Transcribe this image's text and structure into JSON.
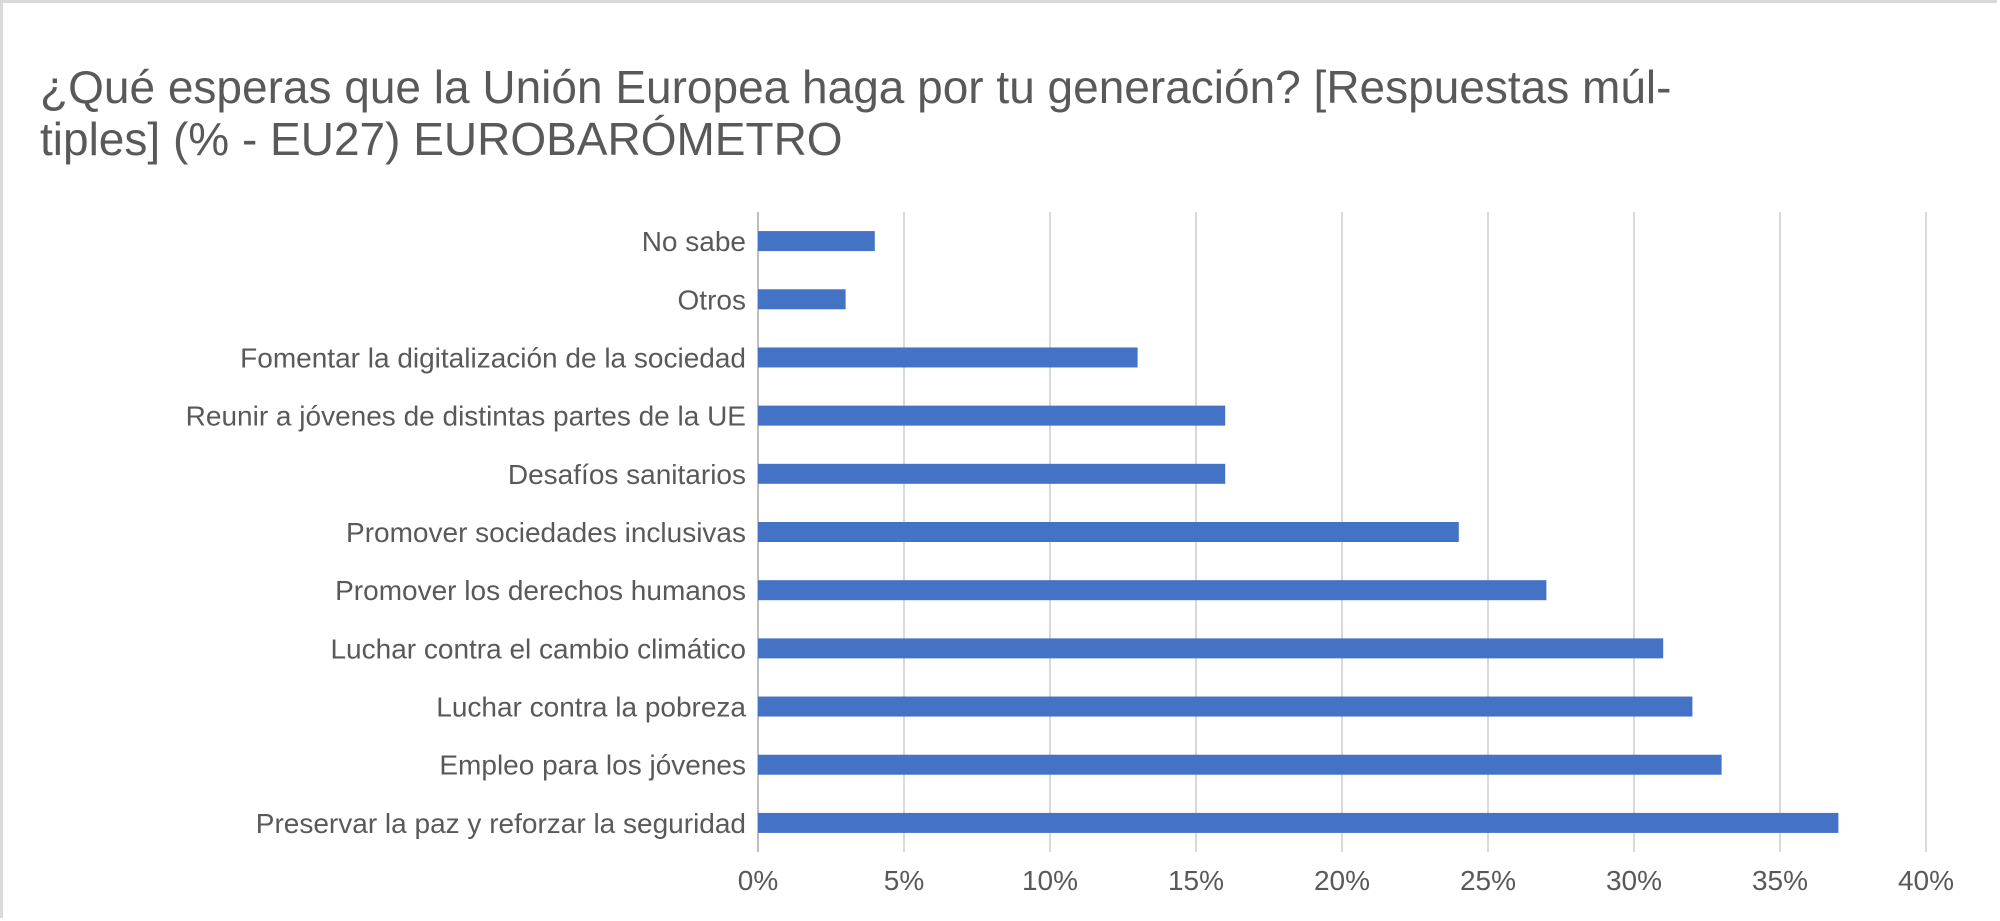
{
  "chart_data": {
    "type": "bar",
    "orientation": "horizontal",
    "title_lines": [
      "¿Qué esperas que la Unión Europea haga por tu generación? [Respuestas múl-",
      "tiples] (% - EU27) EUROBARÓMETRO"
    ],
    "categories": [
      "No sabe",
      "Otros",
      "Fomentar la digitalización de la sociedad",
      "Reunir a jóvenes de distintas partes de la UE",
      "Desafíos sanitarios",
      "Promover sociedades inclusivas",
      "Promover los derechos humanos",
      "Luchar contra el cambio climático",
      "Luchar contra la pobreza",
      "Empleo para los jóvenes",
      "Preservar la paz y reforzar la seguridad"
    ],
    "values": [
      4,
      3,
      13,
      16,
      16,
      24,
      27,
      31,
      32,
      33,
      37
    ],
    "xlim": [
      0,
      40
    ],
    "xticks": [
      0,
      5,
      10,
      15,
      20,
      25,
      30,
      35,
      40
    ],
    "xtick_labels": [
      "0%",
      "5%",
      "10%",
      "15%",
      "20%",
      "25%",
      "30%",
      "35%",
      "40%"
    ],
    "xlabel": "",
    "ylabel": "",
    "grid": true,
    "legend": "none",
    "colors": {
      "bar": "#4472C4",
      "grid": "#d9d9d9",
      "text": "#595959"
    }
  }
}
